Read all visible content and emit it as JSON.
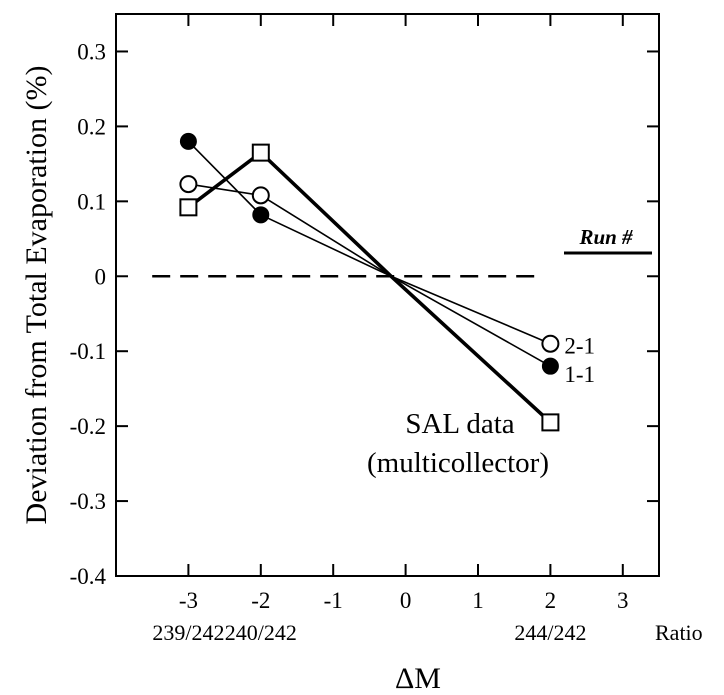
{
  "chart_data": {
    "type": "line",
    "title": "",
    "xlabel": "ΔM",
    "ylabel": "Deviation from Total Evaporation (%)",
    "xlim": [
      -4,
      3.5
    ],
    "ylim": [
      -0.4,
      0.35
    ],
    "x_ticks": [
      -3,
      -2,
      -1,
      0,
      1,
      2,
      3
    ],
    "x_tick_labels": [
      "-3",
      "-2",
      "-1",
      "0",
      "1",
      "2",
      "3"
    ],
    "y_ticks": [
      0.3,
      0.2,
      0.1,
      0,
      -0.1,
      -0.2,
      -0.3,
      -0.4
    ],
    "y_tick_labels": [
      "0.3",
      "0.2",
      "0.1",
      "0",
      "-0.1",
      "-0.2",
      "-0.3",
      "-0.4"
    ],
    "ratio_labels": [
      {
        "x": -3,
        "text": "239/242"
      },
      {
        "x": -2,
        "text": "240/242"
      },
      {
        "x": 2,
        "text": "244/242"
      }
    ],
    "ratio_axis_label": "Ratio",
    "legend_title": "Run #",
    "annotation": [
      "SAL data",
      "(multicollector)"
    ],
    "reference_line": {
      "y": 0,
      "x_from": -3.5,
      "x_to": 1.8,
      "style": "dashed"
    },
    "grid": false,
    "series": [
      {
        "name": "2-1",
        "marker": "open-circle",
        "x": [
          -3,
          -2,
          -0.2,
          2
        ],
        "y": [
          0.123,
          0.108,
          0.0,
          -0.09
        ]
      },
      {
        "name": "1-1",
        "marker": "filled-circle",
        "x": [
          -3,
          -2,
          -0.2,
          2
        ],
        "y": [
          0.18,
          0.082,
          0.0,
          -0.12
        ]
      },
      {
        "marker": "open-square",
        "x": [
          -3,
          -2,
          -0.2,
          2
        ],
        "y": [
          0.092,
          0.165,
          0.0,
          -0.195
        ]
      }
    ]
  }
}
